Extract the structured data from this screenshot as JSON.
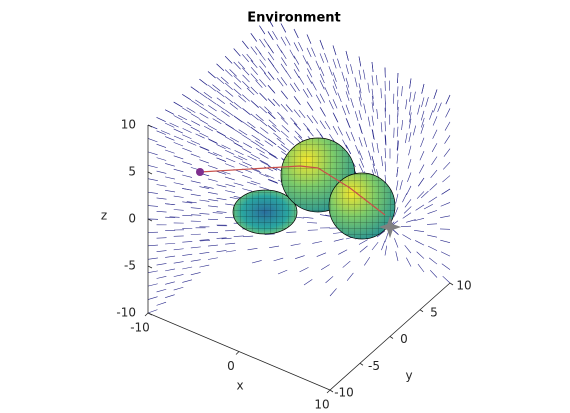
{
  "chart_data": {
    "type": "quiver3",
    "title": "Environment",
    "xlabel": "x",
    "ylabel": "y",
    "zlabel": "z",
    "xlim": [
      -10,
      10
    ],
    "xticks": [
      -10,
      0,
      10
    ],
    "ylim": [
      -10,
      10
    ],
    "yticks": [
      -10,
      -5,
      0,
      5,
      10
    ],
    "zlim": [
      -10,
      10
    ],
    "zticks": [
      -10,
      -5,
      0,
      5,
      10
    ]
  }
}
